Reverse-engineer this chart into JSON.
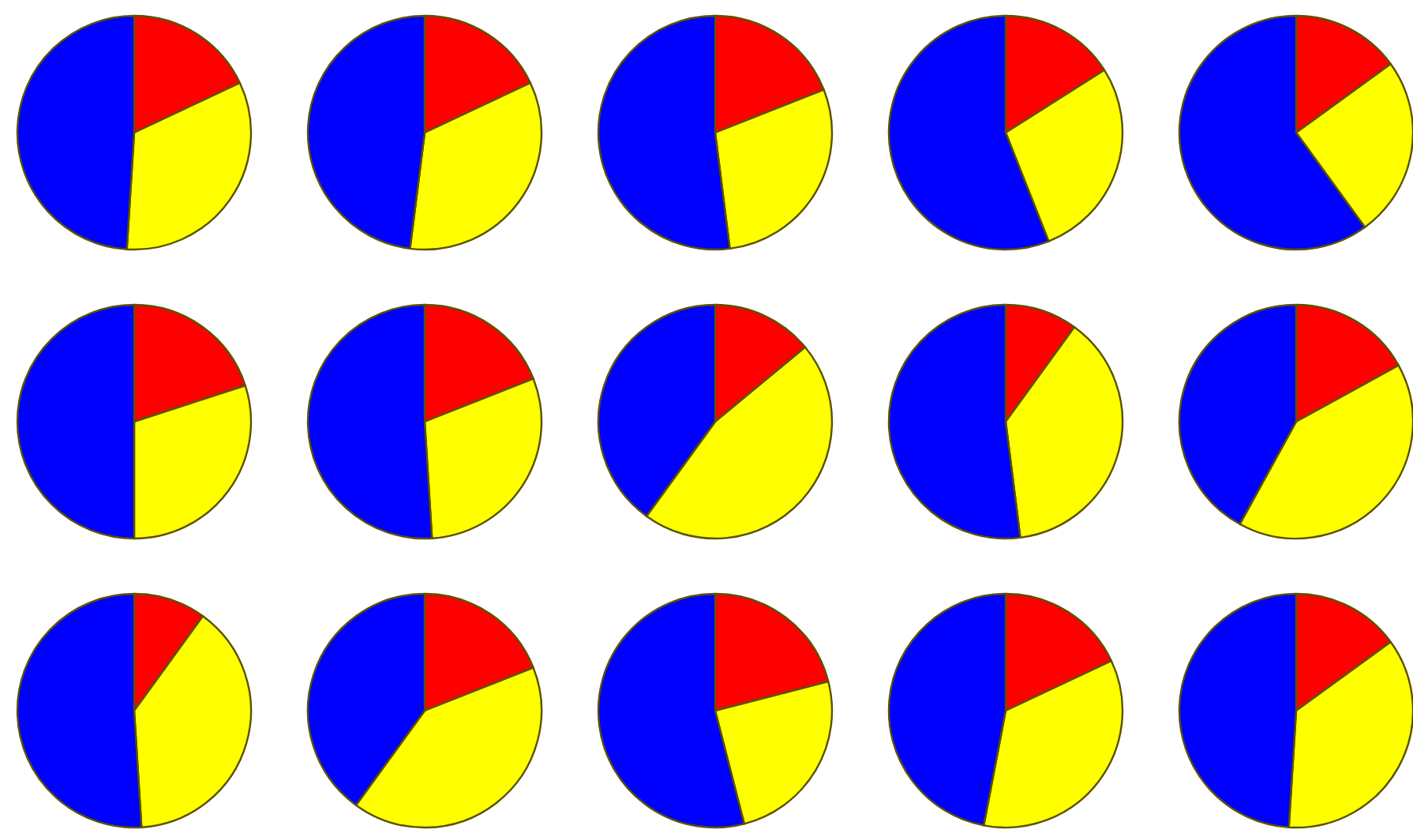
{
  "chart_data": [
    {
      "type": "pie",
      "categories": [
        null,
        null,
        null
      ],
      "values": [
        18,
        33,
        49
      ],
      "colors": [
        "#ff0000",
        "#ffff00",
        "#0000ff"
      ]
    },
    {
      "type": "pie",
      "categories": [
        null,
        null,
        null
      ],
      "values": [
        18,
        34,
        48
      ],
      "colors": [
        "#ff0000",
        "#ffff00",
        "#0000ff"
      ]
    },
    {
      "type": "pie",
      "categories": [
        null,
        null,
        null
      ],
      "values": [
        19,
        29,
        52
      ],
      "colors": [
        "#ff0000",
        "#ffff00",
        "#0000ff"
      ]
    },
    {
      "type": "pie",
      "categories": [
        null,
        null,
        null
      ],
      "values": [
        16,
        28,
        56
      ],
      "colors": [
        "#ff0000",
        "#ffff00",
        "#0000ff"
      ]
    },
    {
      "type": "pie",
      "categories": [
        null,
        null,
        null
      ],
      "values": [
        15,
        25,
        60
      ],
      "colors": [
        "#ff0000",
        "#ffff00",
        "#0000ff"
      ]
    },
    {
      "type": "pie",
      "categories": [
        null,
        null,
        null
      ],
      "values": [
        20,
        30,
        50
      ],
      "colors": [
        "#ff0000",
        "#ffff00",
        "#0000ff"
      ]
    },
    {
      "type": "pie",
      "categories": [
        null,
        null,
        null
      ],
      "values": [
        19,
        30,
        51
      ],
      "colors": [
        "#ff0000",
        "#ffff00",
        "#0000ff"
      ]
    },
    {
      "type": "pie",
      "categories": [
        null,
        null,
        null
      ],
      "values": [
        14,
        46,
        40
      ],
      "colors": [
        "#ff0000",
        "#ffff00",
        "#0000ff"
      ]
    },
    {
      "type": "pie",
      "categories": [
        null,
        null,
        null
      ],
      "values": [
        10,
        38,
        52
      ],
      "colors": [
        "#ff0000",
        "#ffff00",
        "#0000ff"
      ]
    },
    {
      "type": "pie",
      "categories": [
        null,
        null,
        null
      ],
      "values": [
        17,
        41,
        42
      ],
      "colors": [
        "#ff0000",
        "#ffff00",
        "#0000ff"
      ]
    },
    {
      "type": "pie",
      "categories": [
        null,
        null,
        null
      ],
      "values": [
        10,
        39,
        51
      ],
      "colors": [
        "#ff0000",
        "#ffff00",
        "#0000ff"
      ]
    },
    {
      "type": "pie",
      "categories": [
        null,
        null,
        null
      ],
      "values": [
        19,
        41,
        40
      ],
      "colors": [
        "#ff0000",
        "#ffff00",
        "#0000ff"
      ]
    },
    {
      "type": "pie",
      "categories": [
        null,
        null,
        null
      ],
      "values": [
        21,
        25,
        54
      ],
      "colors": [
        "#ff0000",
        "#ffff00",
        "#0000ff"
      ]
    },
    {
      "type": "pie",
      "categories": [
        null,
        null,
        null
      ],
      "values": [
        18,
        35,
        47
      ],
      "colors": [
        "#ff0000",
        "#ffff00",
        "#0000ff"
      ]
    },
    {
      "type": "pie",
      "categories": [
        null,
        null,
        null
      ],
      "values": [
        15,
        36,
        49
      ],
      "colors": [
        "#ff0000",
        "#ffff00",
        "#0000ff"
      ]
    }
  ]
}
